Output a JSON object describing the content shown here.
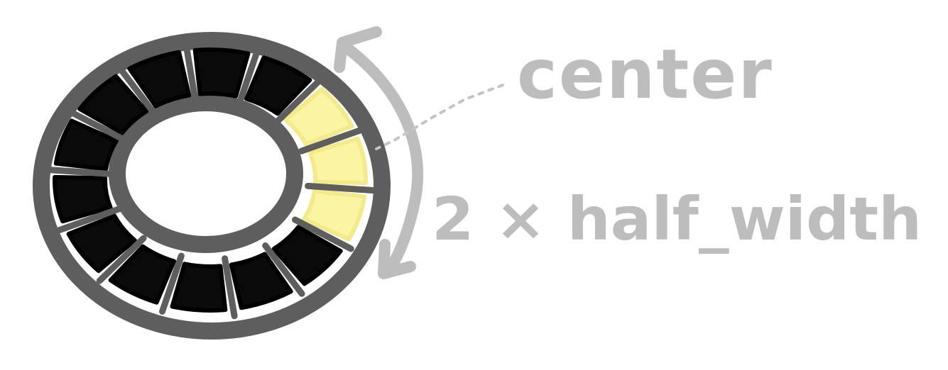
{
  "diagram": {
    "annotations": {
      "center_label": "center",
      "width_label": "2 × half_width"
    },
    "ring": {
      "segment_count": 14,
      "segments": [
        {
          "state": "dark"
        },
        {
          "state": "dark"
        },
        {
          "state": "dark"
        },
        {
          "state": "dark"
        },
        {
          "state": "highlighted"
        },
        {
          "state": "highlighted"
        },
        {
          "state": "highlighted"
        },
        {
          "state": "dark"
        },
        {
          "state": "dark"
        },
        {
          "state": "dark"
        },
        {
          "state": "dark"
        },
        {
          "state": "dark"
        },
        {
          "state": "dark"
        },
        {
          "state": "dark"
        }
      ]
    },
    "colors": {
      "ring_stroke": "#5e5e5e",
      "segment_dark": "#0a0a0a",
      "segment_highlighted": "#fbf5a3",
      "annotation": "#bdbdbd",
      "background": "#ffffff"
    }
  }
}
